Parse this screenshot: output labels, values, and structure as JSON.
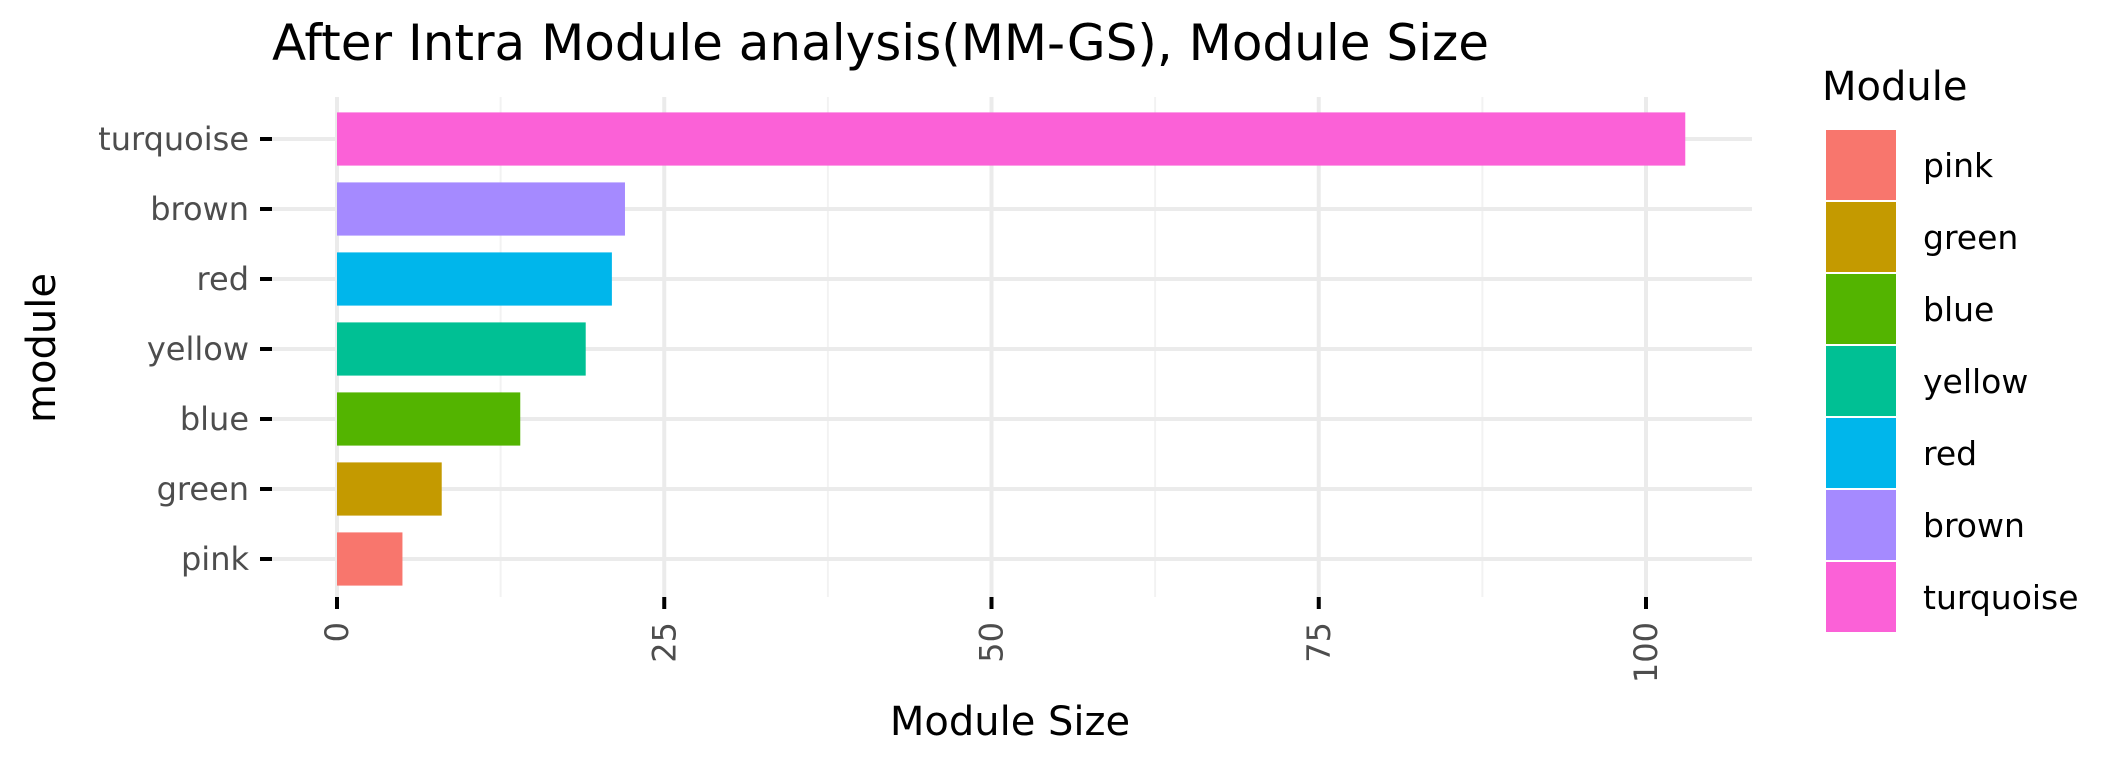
{
  "chart_data": {
    "type": "bar",
    "orientation": "horizontal",
    "title": "After Intra Module analysis(MM-GS), Module Size",
    "xlabel": "Module Size",
    "ylabel": "module",
    "categories": [
      "pink",
      "green",
      "blue",
      "yellow",
      "red",
      "brown",
      "turquoise"
    ],
    "values": [
      5,
      8,
      14,
      19,
      21,
      22,
      103
    ],
    "colors": [
      "#F8766D",
      "#C49A00",
      "#53B400",
      "#00C094",
      "#00B6EB",
      "#A58AFF",
      "#FB61D7"
    ],
    "xlim": [
      0,
      108
    ],
    "x_ticks": [
      0,
      25,
      50,
      75,
      100
    ],
    "x_tick_labels": [
      "0",
      "25",
      "50",
      "75",
      "100"
    ],
    "x_minor_ticks": [
      12.5,
      37.5,
      62.5,
      87.5
    ],
    "grid": true,
    "legend": {
      "title": "Module",
      "position": "right",
      "items": [
        {
          "label": "pink",
          "color": "#F8766D"
        },
        {
          "label": "green",
          "color": "#C49A00"
        },
        {
          "label": "blue",
          "color": "#53B400"
        },
        {
          "label": "yellow",
          "color": "#00C094"
        },
        {
          "label": "red",
          "color": "#00B6EB"
        },
        {
          "label": "brown",
          "color": "#A58AFF"
        },
        {
          "label": "turquoise",
          "color": "#FB61D7"
        }
      ]
    }
  }
}
